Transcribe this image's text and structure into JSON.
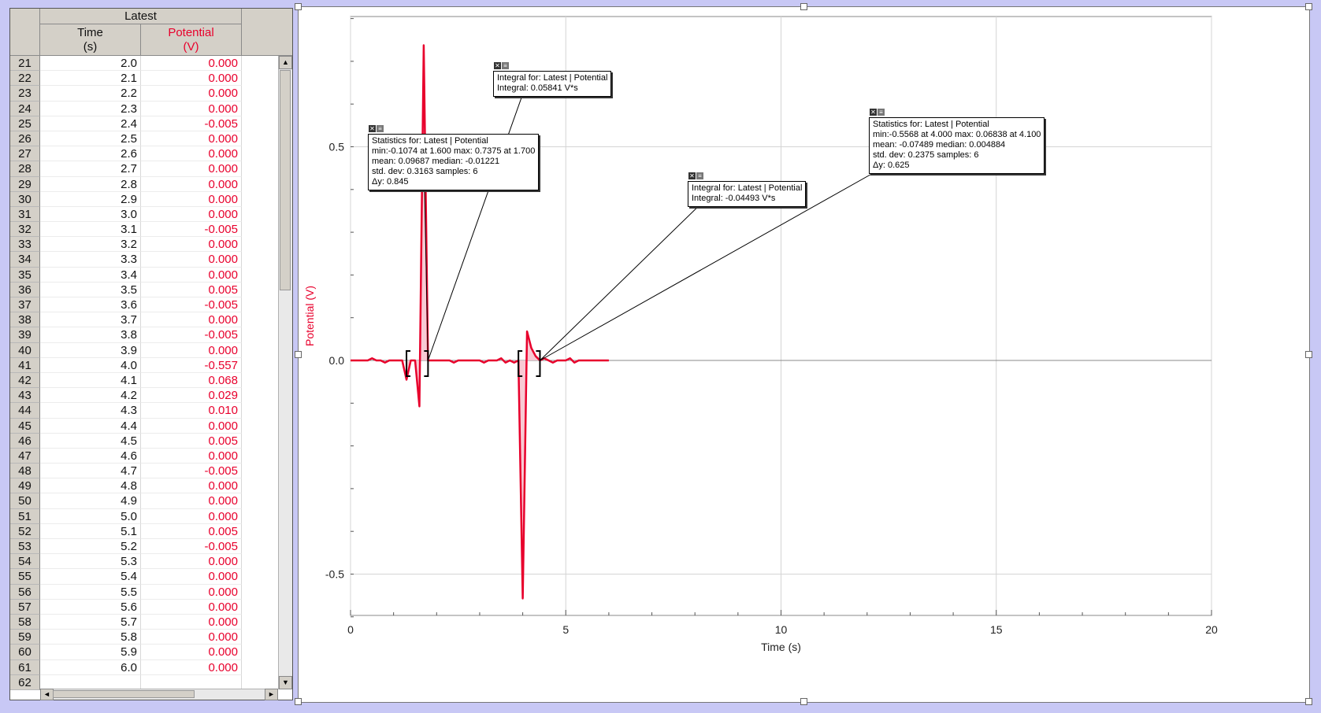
{
  "table": {
    "dataset_name": "Latest",
    "time_header": "Time",
    "time_unit": "(s)",
    "potential_header": "Potential",
    "potential_unit": "(V)",
    "potential_color": "#e8002c",
    "rows": [
      {
        "n": "21",
        "t": "2.0",
        "v": "0.000"
      },
      {
        "n": "22",
        "t": "2.1",
        "v": "0.000"
      },
      {
        "n": "23",
        "t": "2.2",
        "v": "0.000"
      },
      {
        "n": "24",
        "t": "2.3",
        "v": "0.000"
      },
      {
        "n": "25",
        "t": "2.4",
        "v": "-0.005"
      },
      {
        "n": "26",
        "t": "2.5",
        "v": "0.000"
      },
      {
        "n": "27",
        "t": "2.6",
        "v": "0.000"
      },
      {
        "n": "28",
        "t": "2.7",
        "v": "0.000"
      },
      {
        "n": "29",
        "t": "2.8",
        "v": "0.000"
      },
      {
        "n": "30",
        "t": "2.9",
        "v": "0.000"
      },
      {
        "n": "31",
        "t": "3.0",
        "v": "0.000"
      },
      {
        "n": "32",
        "t": "3.1",
        "v": "-0.005"
      },
      {
        "n": "33",
        "t": "3.2",
        "v": "0.000"
      },
      {
        "n": "34",
        "t": "3.3",
        "v": "0.000"
      },
      {
        "n": "35",
        "t": "3.4",
        "v": "0.000"
      },
      {
        "n": "36",
        "t": "3.5",
        "v": "0.005"
      },
      {
        "n": "37",
        "t": "3.6",
        "v": "-0.005"
      },
      {
        "n": "38",
        "t": "3.7",
        "v": "0.000"
      },
      {
        "n": "39",
        "t": "3.8",
        "v": "-0.005"
      },
      {
        "n": "40",
        "t": "3.9",
        "v": "0.000"
      },
      {
        "n": "41",
        "t": "4.0",
        "v": "-0.557"
      },
      {
        "n": "42",
        "t": "4.1",
        "v": "0.068"
      },
      {
        "n": "43",
        "t": "4.2",
        "v": "0.029"
      },
      {
        "n": "44",
        "t": "4.3",
        "v": "0.010"
      },
      {
        "n": "45",
        "t": "4.4",
        "v": "0.000"
      },
      {
        "n": "46",
        "t": "4.5",
        "v": "0.005"
      },
      {
        "n": "47",
        "t": "4.6",
        "v": "0.000"
      },
      {
        "n": "48",
        "t": "4.7",
        "v": "-0.005"
      },
      {
        "n": "49",
        "t": "4.8",
        "v": "0.000"
      },
      {
        "n": "50",
        "t": "4.9",
        "v": "0.000"
      },
      {
        "n": "51",
        "t": "5.0",
        "v": "0.000"
      },
      {
        "n": "52",
        "t": "5.1",
        "v": "0.005"
      },
      {
        "n": "53",
        "t": "5.2",
        "v": "-0.005"
      },
      {
        "n": "54",
        "t": "5.3",
        "v": "0.000"
      },
      {
        "n": "55",
        "t": "5.4",
        "v": "0.000"
      },
      {
        "n": "56",
        "t": "5.5",
        "v": "0.000"
      },
      {
        "n": "57",
        "t": "5.6",
        "v": "0.000"
      },
      {
        "n": "58",
        "t": "5.7",
        "v": "0.000"
      },
      {
        "n": "59",
        "t": "5.8",
        "v": "0.000"
      },
      {
        "n": "60",
        "t": "5.9",
        "v": "0.000"
      },
      {
        "n": "61",
        "t": "6.0",
        "v": "0.000"
      },
      {
        "n": "62",
        "t": "",
        "v": ""
      }
    ]
  },
  "annotations": {
    "stats1": {
      "line1": "Statistics for: Latest | Potential",
      "line2": "min:-0.1074 at 1.600 max: 0.7375 at 1.700",
      "line3": "mean: 0.09687 median: -0.01221",
      "line4": "std. dev: 0.3163 samples: 6",
      "line5": "Δy: 0.845"
    },
    "integral1": {
      "line1": "Integral for: Latest | Potential",
      "line2": "Integral: 0.05841 V*s"
    },
    "integral2": {
      "line1": "Integral for: Latest | Potential",
      "line2": "Integral: -0.04493 V*s"
    },
    "stats2": {
      "line1": "Statistics for: Latest | Potential",
      "line2": "min:-0.5568 at 4.000 max: 0.06838 at 4.100",
      "line3": "mean: -0.07489 median: 0.004884",
      "line4": "std. dev: 0.2375 samples: 6",
      "line5": "Δy: 0.625"
    }
  },
  "chart_data": {
    "type": "line",
    "xlabel": "Time (s)",
    "ylabel": "Potential (V)",
    "xlim": [
      0,
      20
    ],
    "ylim": [
      -0.6,
      0.8
    ],
    "x_ticks": [
      "0",
      "5",
      "10",
      "15",
      "20"
    ],
    "y_ticks": [
      "0.5",
      "0.0",
      "-0.5"
    ],
    "grid": true,
    "line_color": "#e8002c",
    "series": [
      {
        "x": [
          0.0,
          0.1,
          0.2,
          0.3,
          0.4,
          0.5,
          0.6,
          0.7,
          0.8,
          0.9,
          1.0,
          1.1,
          1.2,
          1.3,
          1.4,
          1.5,
          1.6,
          1.7,
          1.8,
          1.9,
          2.0,
          2.1,
          2.2,
          2.3,
          2.4,
          2.5,
          2.6,
          2.7,
          2.8,
          2.9,
          3.0,
          3.1,
          3.2,
          3.3,
          3.4,
          3.5,
          3.6,
          3.7,
          3.8,
          3.9,
          4.0,
          4.1,
          4.2,
          4.3,
          4.4,
          4.5,
          4.6,
          4.7,
          4.8,
          4.9,
          5.0,
          5.1,
          5.2,
          5.3,
          5.4,
          5.5,
          5.6,
          5.7,
          5.8,
          5.9,
          6.0
        ],
        "y": [
          0,
          0,
          0,
          0,
          0,
          0.005,
          0,
          0,
          -0.005,
          0,
          0,
          0,
          0,
          -0.045,
          0,
          0,
          -0.1074,
          0.7375,
          0,
          0,
          0,
          0,
          0,
          0,
          -0.005,
          0,
          0,
          0,
          0,
          0,
          0,
          -0.005,
          0,
          0,
          0,
          0.005,
          -0.005,
          0,
          -0.005,
          0,
          -0.557,
          0.068,
          0.029,
          0.01,
          0,
          0.005,
          0,
          -0.005,
          0,
          0,
          0,
          0.005,
          -0.005,
          0,
          0,
          0,
          0,
          0,
          0,
          0,
          0
        ]
      }
    ],
    "regions": [
      {
        "kind": "statistics",
        "x_start": 1.3,
        "x_end": 1.8
      },
      {
        "kind": "integral",
        "x_start": 1.3,
        "x_end": 1.8
      },
      {
        "kind": "integral",
        "x_start": 3.9,
        "x_end": 4.4
      },
      {
        "kind": "statistics",
        "x_start": 3.9,
        "x_end": 4.4
      }
    ]
  }
}
